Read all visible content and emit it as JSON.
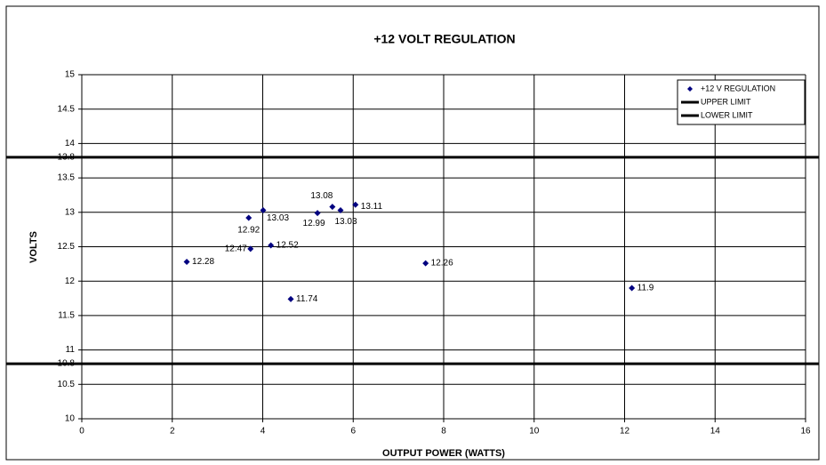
{
  "chart_data": {
    "type": "scatter",
    "title": "+12 VOLT REGULATION",
    "xlabel": "OUTPUT POWER (WATTS)",
    "ylabel": "VOLTS",
    "xlim": [
      0,
      16
    ],
    "xticks": [
      0,
      2,
      4,
      6,
      8,
      10,
      12,
      14,
      16
    ],
    "ylim": [
      10,
      15
    ],
    "yticks": [
      10,
      10.5,
      11,
      11.5,
      12,
      12.5,
      13,
      13.5,
      14,
      14.5,
      15
    ],
    "grid": true,
    "legend": "upper right",
    "series": [
      {
        "name": "+12 V REGULATION",
        "color": "#000080",
        "x": [
          2.32,
          3.69,
          3.73,
          4.01,
          4.18,
          4.62,
          5.21,
          5.54,
          5.72,
          6.05,
          7.6,
          12.16
        ],
        "values": [
          12.28,
          12.92,
          12.47,
          13.03,
          12.52,
          11.74,
          12.99,
          13.08,
          13.03,
          13.11,
          12.26,
          11.9
        ]
      }
    ],
    "reference_lines": [
      {
        "name": "UPPER LIMIT",
        "value": 13.8,
        "color": "#000000"
      },
      {
        "name": "LOWER LIMIT",
        "value": 10.8,
        "color": "#000000"
      }
    ]
  }
}
